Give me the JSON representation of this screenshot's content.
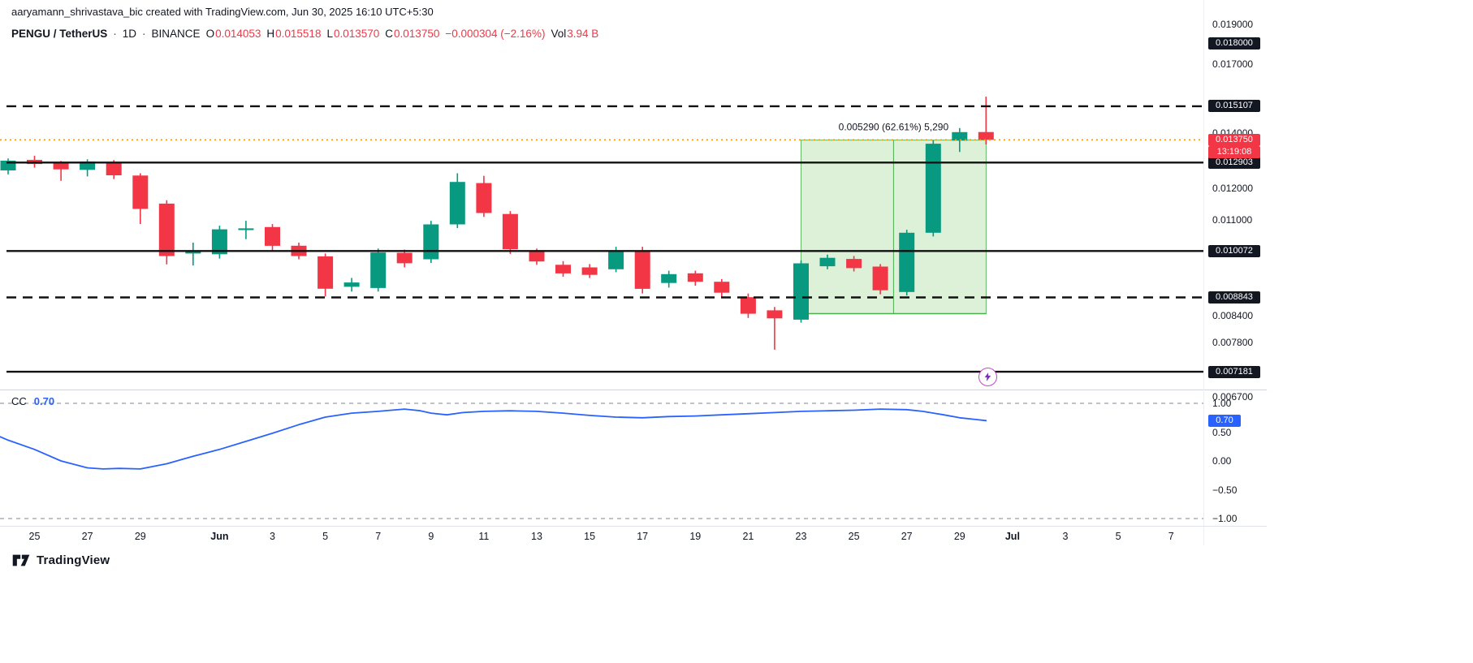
{
  "attribution": {
    "text": "aaryamann_shrivastava_bic created with TradingView.com, Jun 30, 2025 16:10 UTC+5:30"
  },
  "header": {
    "symbol": "PENGU / TetherUS",
    "dot": "·",
    "interval": "1D",
    "exchange": "BINANCE",
    "o_label": "O",
    "o_value": "0.014053",
    "h_label": "H",
    "h_value": "0.015518",
    "l_label": "L",
    "l_value": "0.013570",
    "c_label": "C",
    "c_value": "0.013750",
    "change": "−0.000304 (−2.16%)",
    "vol_label": "Vol",
    "vol_value": "3.94 B"
  },
  "indicator_legend": {
    "name": "CC",
    "value": "0.70"
  },
  "footer": {
    "brand": "TradingView"
  },
  "marker": {
    "icon": "lightning-in-circle"
  },
  "colors": {
    "up": "#089981",
    "down": "#f23645",
    "blue": "#2962ff",
    "text": "#131722",
    "line_black": "#111111",
    "last_price_line": "#ff9800",
    "box_fill": "#90d07f",
    "box_stroke": "#4caf50",
    "badge_dark": "#131722"
  },
  "chart_data": [
    {
      "type": "candlestick",
      "title": "PENGU / TetherUS · 1D · BINANCE",
      "y_scale": "log",
      "dates": [
        "May 24",
        "May 25",
        "May 26",
        "May 27",
        "May 28",
        "May 29",
        "May 30",
        "May 31",
        "Jun 1",
        "Jun 2",
        "Jun 3",
        "Jun 4",
        "Jun 5",
        "Jun 6",
        "Jun 7",
        "Jun 8",
        "Jun 9",
        "Jun 10",
        "Jun 11",
        "Jun 12",
        "Jun 13",
        "Jun 14",
        "Jun 15",
        "Jun 16",
        "Jun 17",
        "Jun 18",
        "Jun 19",
        "Jun 20",
        "Jun 21",
        "Jun 22",
        "Jun 23",
        "Jun 24",
        "Jun 25",
        "Jun 26",
        "Jun 27",
        "Jun 28",
        "Jun 29",
        "Jun 30"
      ],
      "ohlc": [
        [
          0.01262,
          0.01305,
          0.01248,
          0.01297
        ],
        [
          0.013,
          0.01315,
          0.01272,
          0.01285
        ],
        [
          0.01288,
          0.01296,
          0.01226,
          0.01266
        ],
        [
          0.01264,
          0.01302,
          0.01241,
          0.01294
        ],
        [
          0.01292,
          0.01299,
          0.01232,
          0.01245
        ],
        [
          0.01244,
          0.01252,
          0.01086,
          0.01133
        ],
        [
          0.0115,
          0.01161,
          0.0097,
          0.00993
        ],
        [
          0.01,
          0.01031,
          0.00967,
          0.01008
        ],
        [
          0.00998,
          0.01081,
          0.00986,
          0.0107
        ],
        [
          0.01068,
          0.01096,
          0.01041,
          0.01073
        ],
        [
          0.01077,
          0.01086,
          0.01009,
          0.01022
        ],
        [
          0.01022,
          0.01031,
          0.00984,
          0.00993
        ],
        [
          0.00992,
          0.01,
          0.00887,
          0.00906
        ],
        [
          0.00911,
          0.00934,
          0.00899,
          0.00922
        ],
        [
          0.00908,
          0.01014,
          0.00899,
          0.01003
        ],
        [
          0.01002,
          0.01011,
          0.00962,
          0.00973
        ],
        [
          0.00984,
          0.01096,
          0.00974,
          0.01085
        ],
        [
          0.01085,
          0.01252,
          0.01074,
          0.01222
        ],
        [
          0.01218,
          0.01243,
          0.01108,
          0.0112
        ],
        [
          0.01117,
          0.01126,
          0.00999,
          0.01012
        ],
        [
          0.01005,
          0.01014,
          0.00969,
          0.00978
        ],
        [
          0.00969,
          0.00979,
          0.00937,
          0.00946
        ],
        [
          0.00962,
          0.00971,
          0.00934,
          0.00942
        ],
        [
          0.00957,
          0.01019,
          0.00949,
          0.01009
        ],
        [
          0.01009,
          0.01019,
          0.00894,
          0.00906
        ],
        [
          0.00921,
          0.00953,
          0.00909,
          0.00944
        ],
        [
          0.00946,
          0.00953,
          0.00914,
          0.00924
        ],
        [
          0.00924,
          0.00931,
          0.00884,
          0.00896
        ],
        [
          0.00885,
          0.00894,
          0.00835,
          0.00845
        ],
        [
          0.00853,
          0.00861,
          0.00764,
          0.00834
        ],
        [
          0.00831,
          0.00981,
          0.00824,
          0.00973
        ],
        [
          0.00965,
          0.00997,
          0.00957,
          0.00988
        ],
        [
          0.00985,
          0.00993,
          0.00951,
          0.0096
        ],
        [
          0.00964,
          0.00971,
          0.00892,
          0.00902
        ],
        [
          0.00898,
          0.01069,
          0.00889,
          0.0106
        ],
        [
          0.0106,
          0.01373,
          0.01049,
          0.0136
        ],
        [
          0.01372,
          0.01421,
          0.01329,
          0.01405
        ],
        [
          0.014053,
          0.015518,
          0.01357,
          0.01375
        ]
      ],
      "axis_labels": [
        {
          "price": 0.019,
          "label": "0.019000"
        },
        {
          "price": 0.017,
          "label": "0.017000"
        },
        {
          "price": 0.014,
          "label": "0.014000"
        },
        {
          "price": 0.012,
          "label": "0.012000"
        },
        {
          "price": 0.011,
          "label": "0.011000"
        },
        {
          "price": 0.0084,
          "label": "0.008400"
        },
        {
          "price": 0.0078,
          "label": "0.007800"
        },
        {
          "price": 0.0067,
          "label": "0.006700"
        }
      ],
      "price_lines": [
        {
          "price": 0.018,
          "label": "0.018000",
          "style": "none"
        },
        {
          "price": 0.015107,
          "label": "0.015107",
          "style": "dashed"
        },
        {
          "price": 0.012903,
          "label": "0.012903",
          "style": "solid"
        },
        {
          "price": 0.010072,
          "label": "0.010072",
          "style": "solid"
        },
        {
          "price": 0.008843,
          "label": "0.008843",
          "style": "dashed"
        },
        {
          "price": 0.007181,
          "label": "0.007181",
          "style": "solid"
        }
      ],
      "last_price": {
        "price": 0.01375,
        "label": "0.013750",
        "countdown": "13:19:08"
      },
      "position_box": {
        "from_index": 30,
        "to_index": 37,
        "top": 0.01374,
        "bottom": 0.00845,
        "label": "0.005290 (62.61%) 5,290"
      },
      "time_ticks": [
        {
          "label": "25",
          "i": 1
        },
        {
          "label": "27",
          "i": 3
        },
        {
          "label": "29",
          "i": 5
        },
        {
          "label": "Jun",
          "i": 8,
          "major": true
        },
        {
          "label": "3",
          "i": 10
        },
        {
          "label": "5",
          "i": 12
        },
        {
          "label": "7",
          "i": 14
        },
        {
          "label": "9",
          "i": 16
        },
        {
          "label": "11",
          "i": 18
        },
        {
          "label": "13",
          "i": 20
        },
        {
          "label": "15",
          "i": 22
        },
        {
          "label": "17",
          "i": 24
        },
        {
          "label": "19",
          "i": 26
        },
        {
          "label": "21",
          "i": 28
        },
        {
          "label": "23",
          "i": 30
        },
        {
          "label": "25",
          "i": 32
        },
        {
          "label": "27",
          "i": 34
        },
        {
          "label": "29",
          "i": 36
        },
        {
          "label": "Jul",
          "i": 38,
          "major": true
        },
        {
          "label": "3",
          "i": 40
        },
        {
          "label": "5",
          "i": 42
        },
        {
          "label": "7",
          "i": 44
        }
      ]
    },
    {
      "type": "line",
      "name": "CC",
      "value_label": "0.70",
      "last_value": 0.7,
      "ylim": [
        -1.25,
        1.25
      ],
      "grid_values": [
        1,
        -1
      ],
      "axis_ticks": [
        {
          "v": 1.0,
          "label": "1.00"
        },
        {
          "v": 0.5,
          "label": "0.50"
        },
        {
          "v": 0.0,
          "label": "0.00"
        },
        {
          "v": -0.5,
          "label": "−0.50"
        },
        {
          "v": -1.0,
          "label": "−1.00"
        }
      ],
      "points": [
        [
          -0.3,
          0.42
        ],
        [
          0,
          0.36
        ],
        [
          1,
          0.2
        ],
        [
          2,
          0.0
        ],
        [
          3,
          -0.12
        ],
        [
          3.6,
          -0.14
        ],
        [
          4.2,
          -0.13
        ],
        [
          5,
          -0.14
        ],
        [
          6,
          -0.05
        ],
        [
          7,
          0.08
        ],
        [
          8,
          0.2
        ],
        [
          9,
          0.34
        ],
        [
          10,
          0.48
        ],
        [
          11,
          0.63
        ],
        [
          12,
          0.76
        ],
        [
          13,
          0.83
        ],
        [
          14,
          0.86
        ],
        [
          15,
          0.9
        ],
        [
          15.6,
          0.87
        ],
        [
          16,
          0.83
        ],
        [
          16.6,
          0.8
        ],
        [
          17.2,
          0.84
        ],
        [
          18,
          0.86
        ],
        [
          19,
          0.87
        ],
        [
          20,
          0.86
        ],
        [
          21,
          0.83
        ],
        [
          22,
          0.79
        ],
        [
          23,
          0.76
        ],
        [
          24,
          0.75
        ],
        [
          25,
          0.77
        ],
        [
          26,
          0.78
        ],
        [
          27,
          0.8
        ],
        [
          28,
          0.82
        ],
        [
          29,
          0.84
        ],
        [
          30,
          0.86
        ],
        [
          31,
          0.87
        ],
        [
          32,
          0.88
        ],
        [
          33,
          0.9
        ],
        [
          34,
          0.89
        ],
        [
          34.6,
          0.86
        ],
        [
          35.4,
          0.8
        ],
        [
          36,
          0.75
        ],
        [
          36.6,
          0.72
        ],
        [
          37,
          0.7
        ]
      ]
    }
  ]
}
